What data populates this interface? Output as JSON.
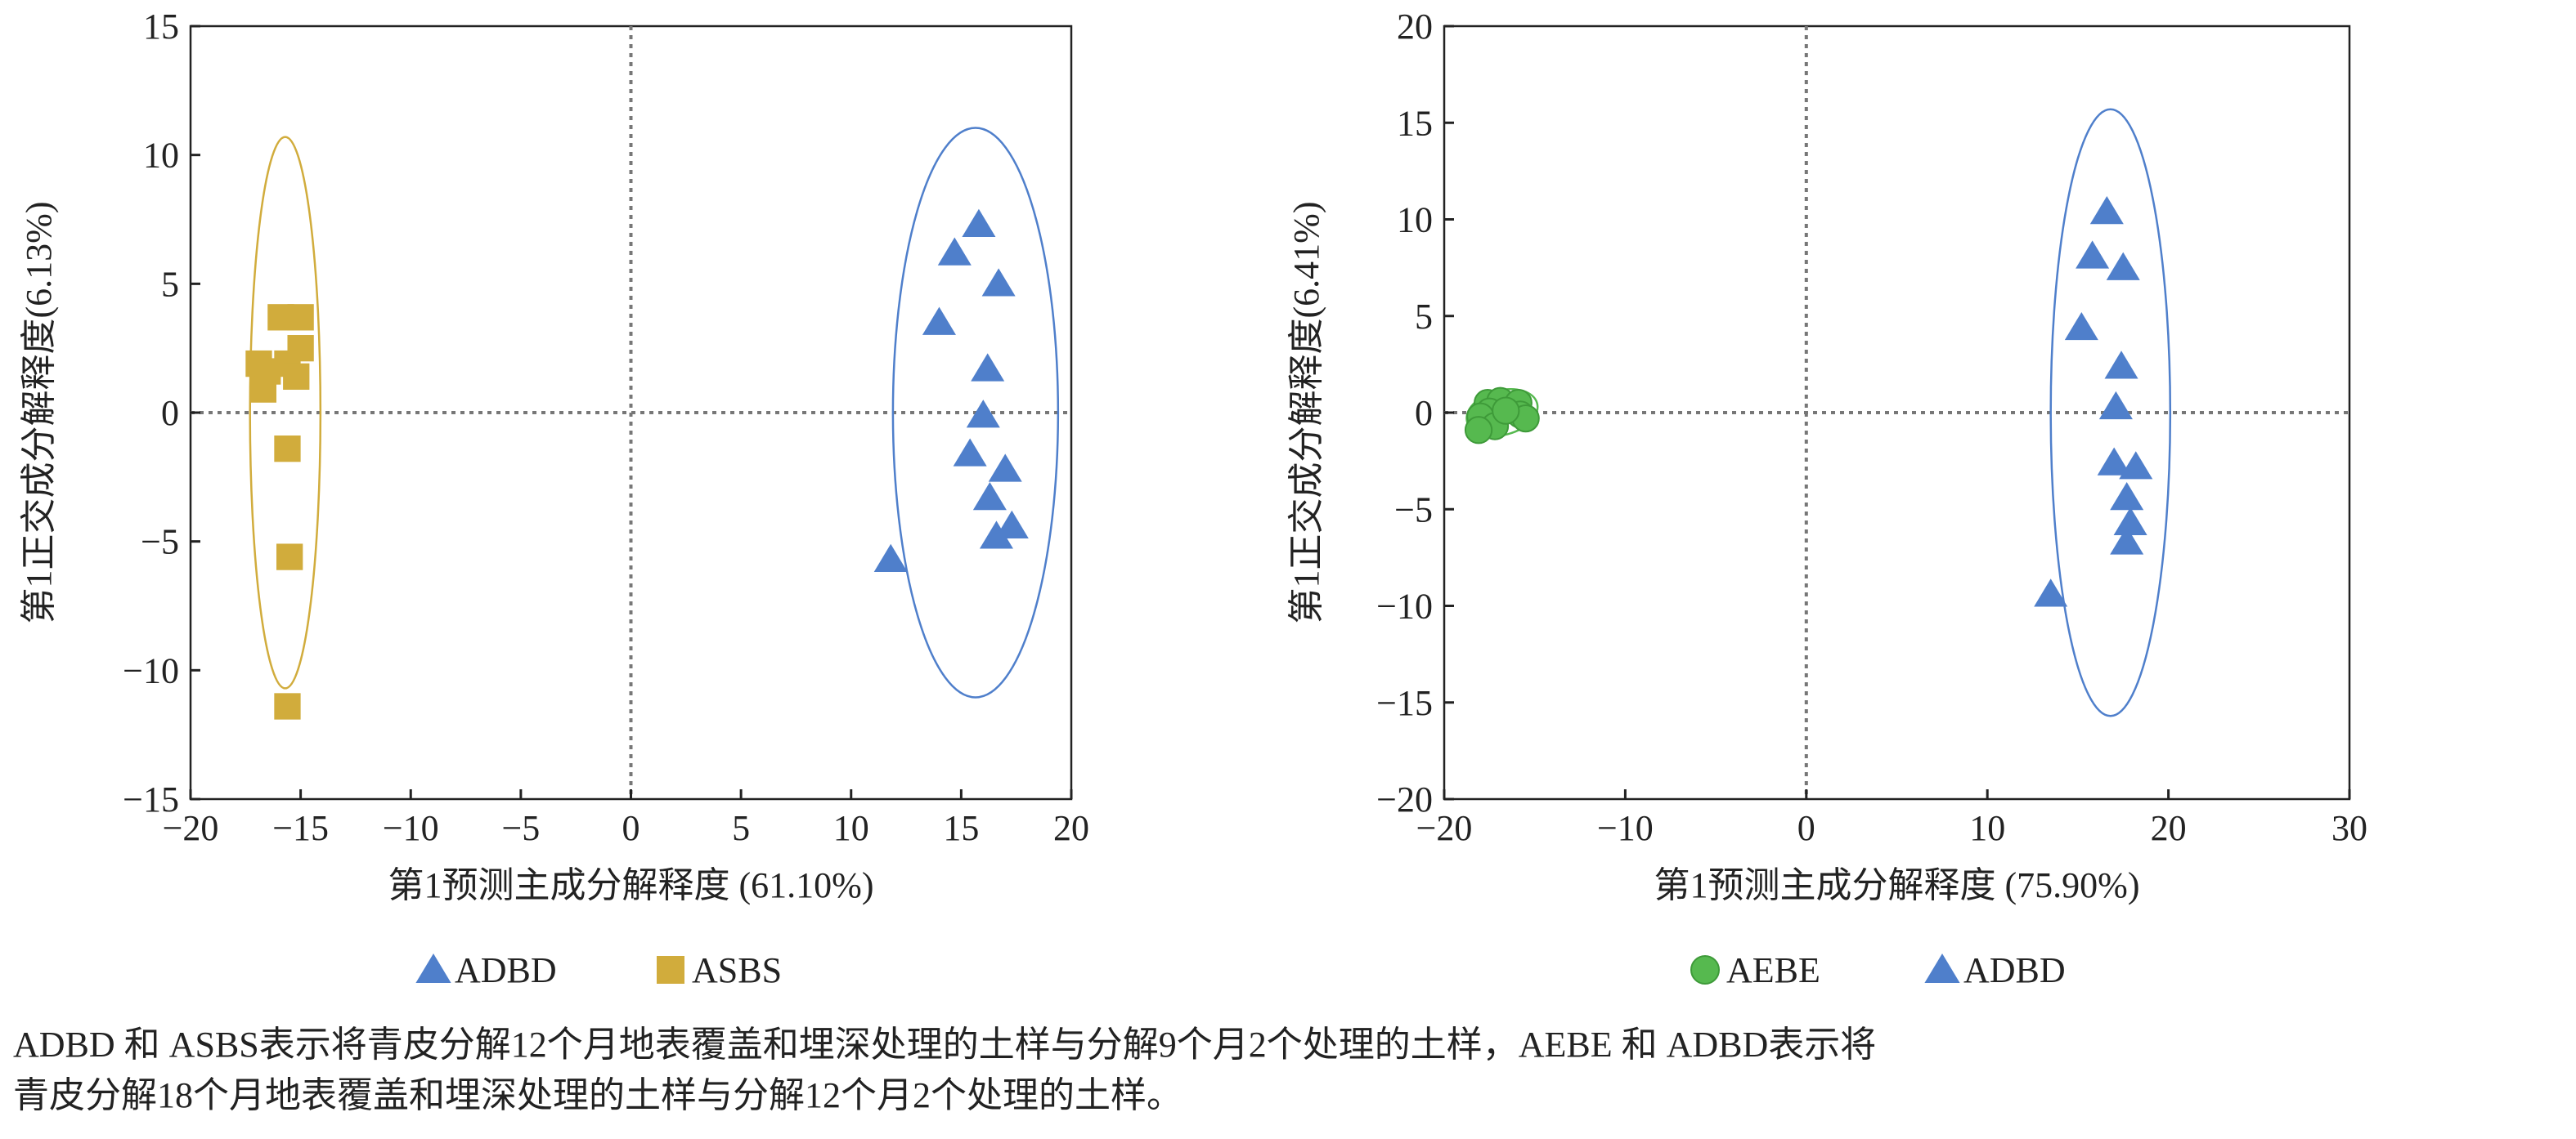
{
  "chart_data": [
    {
      "type": "scatter",
      "xlabel": "第1预测主成分解释度 (61.10%)",
      "ylabel": "第1正交成分解释度(6.13%)",
      "xlim": [
        -20,
        20
      ],
      "ylim": [
        -15,
        15
      ],
      "xticks": [
        -20,
        -15,
        -10,
        -5,
        0,
        5,
        10,
        15,
        20
      ],
      "yticks": [
        -15,
        -10,
        -5,
        0,
        5,
        10,
        15
      ],
      "legend_position": "bottom",
      "series": [
        {
          "name": "ADBD",
          "marker": "triangle",
          "color": "#4f7fcb",
          "points": [
            [
              15.8,
              7.3
            ],
            [
              14.7,
              6.2
            ],
            [
              16.7,
              5.0
            ],
            [
              14.0,
              3.5
            ],
            [
              16.2,
              1.7
            ],
            [
              16.0,
              -0.1
            ],
            [
              15.4,
              -1.6
            ],
            [
              17.0,
              -2.2
            ],
            [
              16.3,
              -3.3
            ],
            [
              17.3,
              -4.4
            ],
            [
              16.6,
              -4.8
            ],
            [
              11.8,
              -5.7
            ]
          ],
          "ellipse": {
            "cx": 15.65,
            "cy": 0.0,
            "rx": 3.75,
            "ry": 11.05,
            "rotate": 0
          }
        },
        {
          "name": "ASBS",
          "marker": "square",
          "color": "#d1ac3c",
          "points": [
            [
              -15.9,
              3.7
            ],
            [
              -15.0,
              3.7
            ],
            [
              -16.9,
              1.9
            ],
            [
              -15.6,
              1.9
            ],
            [
              -15.0,
              2.5
            ],
            [
              -16.5,
              1.6
            ],
            [
              -16.7,
              0.9
            ],
            [
              -15.2,
              1.4
            ],
            [
              -15.6,
              -1.4
            ],
            [
              -15.5,
              -5.6
            ],
            [
              -15.6,
              -11.4
            ]
          ],
          "ellipse": {
            "cx": -15.7,
            "cy": 0.0,
            "rx": 1.6,
            "ry": 10.7,
            "rotate": 0
          }
        }
      ]
    },
    {
      "type": "scatter",
      "xlabel": "第1预测主成分解释度 (75.90%)",
      "ylabel": "第1正交成分解释度(6.41%)",
      "xlim": [
        -20,
        30
      ],
      "ylim": [
        -20,
        20
      ],
      "xticks": [
        -20,
        -10,
        0,
        10,
        20,
        30
      ],
      "yticks": [
        -20,
        -15,
        -10,
        -5,
        0,
        5,
        10,
        15,
        20
      ],
      "legend_position": "bottom",
      "series": [
        {
          "name": "AEBE",
          "marker": "circle",
          "color": "#56b94f",
          "points": [
            [
              -17.6,
              0.5
            ],
            [
              -16.9,
              0.6
            ],
            [
              -15.9,
              0.5
            ],
            [
              -17.5,
              0.05
            ],
            [
              -18.0,
              -0.2
            ],
            [
              -17.2,
              -0.7
            ],
            [
              -18.1,
              -0.9
            ],
            [
              -15.8,
              -0.1
            ],
            [
              -15.5,
              -0.3
            ],
            [
              -16.6,
              0.1
            ]
          ],
          "ellipse": {
            "cx": -16.8,
            "cy": 0.0,
            "rx": 2.0,
            "ry": 1.15,
            "rotate": -15
          }
        },
        {
          "name": "ADBD",
          "marker": "triangle",
          "color": "#4f7fcb",
          "points": [
            [
              16.6,
              10.4
            ],
            [
              15.8,
              8.1
            ],
            [
              17.5,
              7.5
            ],
            [
              15.2,
              4.4
            ],
            [
              17.4,
              2.4
            ],
            [
              17.1,
              0.3
            ],
            [
              17.0,
              -2.6
            ],
            [
              18.2,
              -2.8
            ],
            [
              17.7,
              -4.4
            ],
            [
              17.9,
              -5.7
            ],
            [
              17.7,
              -6.7
            ],
            [
              13.5,
              -9.4
            ]
          ],
          "ellipse": {
            "cx": 16.8,
            "cy": 0.0,
            "rx": 3.3,
            "ry": 15.7,
            "rotate": 0
          }
        }
      ]
    }
  ],
  "caption": {
    "line1": "ADBD 和 ASBS表示将青皮分解12个月地表覆盖和埋深处理的土样与分解9个月2个处理的土样，AEBE 和 ADBD表示将",
    "line2": "青皮分解18个月地表覆盖和埋深处理的土样与分解12个月2个处理的土样。"
  }
}
